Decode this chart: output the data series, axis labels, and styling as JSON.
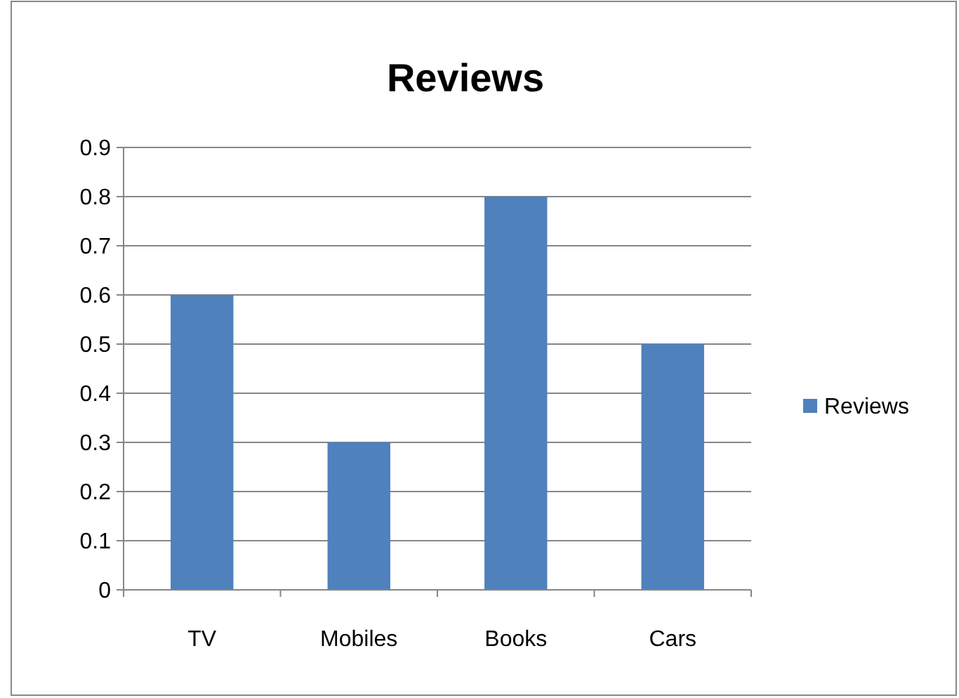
{
  "chart_data": {
    "type": "bar",
    "title": "Reviews",
    "categories": [
      "TV",
      "Mobiles",
      "Books",
      "Cars"
    ],
    "series": [
      {
        "name": "Reviews",
        "color": "#4f81bd",
        "values": [
          0.6,
          0.3,
          0.8,
          0.5
        ]
      }
    ],
    "ylim": [
      0,
      0.9
    ],
    "yticks": [
      0,
      0.1,
      0.2,
      0.3,
      0.4,
      0.5,
      0.6,
      0.7,
      0.8,
      0.9
    ],
    "grid": "y",
    "legend": "right"
  }
}
